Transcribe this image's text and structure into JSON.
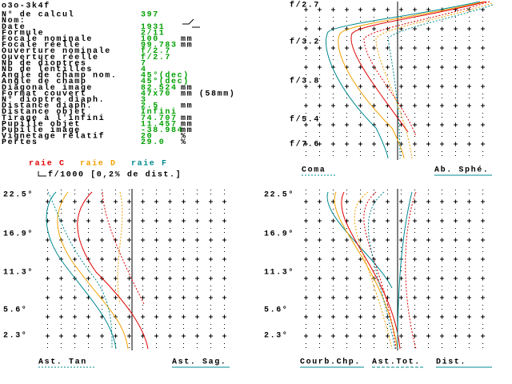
{
  "header": {
    "title": "o3o-3k4f"
  },
  "params": [
    {
      "label": "N° de calcul",
      "value": "397"
    },
    {
      "label": "Nom:"
    },
    {
      "label": "Date",
      "value": "1931"
    },
    {
      "label": "Formule",
      "value": "2/11"
    },
    {
      "label": "Focale nominale",
      "value": "100",
      "unit": "mm"
    },
    {
      "label": "Focale réelle",
      "value": "99.783",
      "unit": "mm"
    },
    {
      "label": "Ouverture nominale",
      "value": "f/2.7"
    },
    {
      "label": "Ouverture réelle",
      "value": "f/2.7"
    },
    {
      "label": "Nb de dioptres",
      "value": "7"
    },
    {
      "label": "Nb de lentilles",
      "value": "4"
    },
    {
      "label": "Angle de champ nom.",
      "value": "45°(dec)"
    },
    {
      "label": "Angle de champ",
      "value": "45°(dec)"
    },
    {
      "label": "Diagonale image",
      "value": "82.524",
      "unit": "mm"
    },
    {
      "label": "Format couvert",
      "value": "47x70",
      "unit": "mm (58mm)"
    },
    {
      "label": "N° dioptre diaph.",
      "value": "3"
    },
    {
      "label": "Distance diaph.",
      "value": "2.5",
      "unit": "mm"
    },
    {
      "label": "Distance objet",
      "value": "Infini"
    },
    {
      "label": "Tirage à l'infini",
      "value": "74.707",
      "unit": "mm"
    },
    {
      "label": "Pupille objet",
      "value": "11.457",
      "unit": "mm"
    },
    {
      "label": "Pupille image",
      "value": "-38.984",
      "unit": "mm"
    },
    {
      "label": "Vignetage relatif",
      "value": "20",
      "unit": "%"
    },
    {
      "label": "Pertes",
      "value": "29.0",
      "unit": "%"
    }
  ],
  "legend": {
    "lines": [
      {
        "name": "raie C",
        "color": "#e00000"
      },
      {
        "name": "raie D",
        "color": "#f0a000"
      },
      {
        "name": "raie F",
        "color": "#008890"
      }
    ],
    "note": "f/1000 [0,2% de dist.]"
  },
  "panels": [
    {
      "yticks": [
        "f/2.7",
        "f/3.2",
        "f/3.8",
        "f/5.4",
        "f/7.6"
      ],
      "labels": [
        "Coma",
        "Ab. Sphé."
      ]
    },
    {
      "yticks": [
        "22.5°",
        "16.9°",
        "11.3°",
        "5.6°",
        "2.3°"
      ],
      "labels": [
        "Ast. Tan",
        "Ast. Sag."
      ]
    },
    {
      "yticks": [
        "22.5°",
        "16.9°",
        "11.3°",
        "5.6°",
        "2.3°"
      ],
      "labels": [
        "Courb.Chp.",
        "Ast.Tot.",
        "Dist."
      ]
    }
  ]
}
